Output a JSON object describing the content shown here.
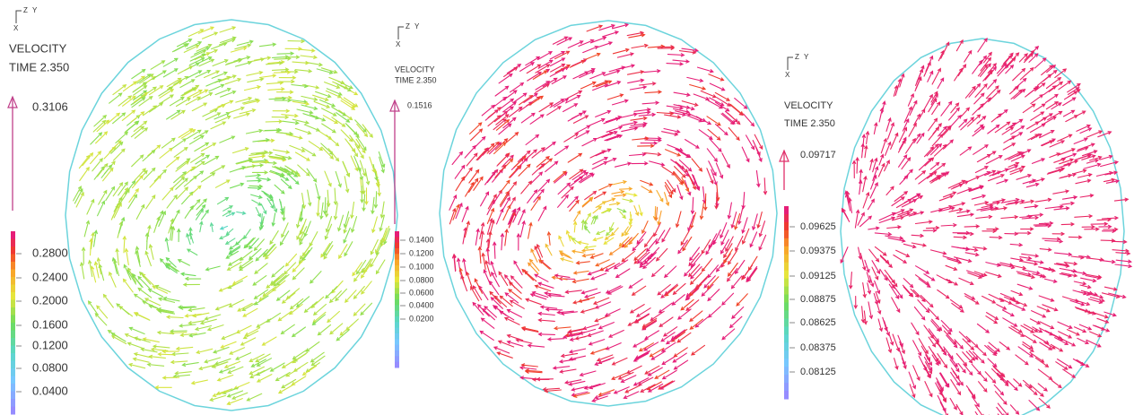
{
  "panels": [
    {
      "axis_labels": {
        "z": "Z",
        "y": "Y",
        "x": "X"
      },
      "quantity": "VELOCITY",
      "time": "TIME 2.350",
      "reference": "0.3106",
      "legend": [
        "0.2800",
        "0.2400",
        "0.2000",
        "0.1600",
        "0.1200",
        "0.0800",
        "0.0400"
      ]
    },
    {
      "axis_labels": {
        "z": "Z",
        "y": "Y",
        "x": "X"
      },
      "quantity": "VELOCITY",
      "time": "TIME 2.350",
      "reference": "0.1516",
      "legend": [
        "0.1400",
        "0.1200",
        "0.1000",
        "0.0800",
        "0.0600",
        "0.0400",
        "0.0200"
      ]
    },
    {
      "axis_labels": {
        "z": "Z",
        "y": "Y",
        "x": "X"
      },
      "quantity": "VELOCITY",
      "time": "TIME 2.350",
      "reference": "0.09717",
      "legend": [
        "0.09625",
        "0.09375",
        "0.09125",
        "0.08875",
        "0.08625",
        "0.08375",
        "0.08125"
      ]
    }
  ]
}
